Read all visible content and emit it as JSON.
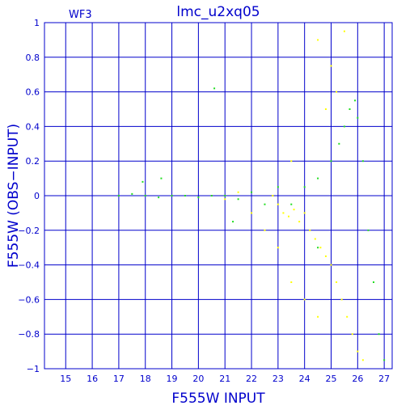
{
  "chart_data": {
    "type": "scatter",
    "title": "lmc_u2xq05",
    "corner_label": "WF3",
    "xlabel": "F555W  INPUT",
    "ylabel": "F555W  (OBS−INPUT)",
    "xlim": [
      14.2,
      27.3
    ],
    "ylim": [
      -1,
      1
    ],
    "x_ticks": [
      15,
      16,
      17,
      18,
      19,
      20,
      21,
      22,
      23,
      24,
      25,
      26,
      27
    ],
    "y_ticks": [
      -1,
      -0.8,
      -0.6,
      -0.4,
      -0.2,
      0,
      0.2,
      0.4,
      0.6,
      0.8,
      1
    ],
    "x_tick_labels": [
      "15",
      "16",
      "17",
      "18",
      "19",
      "20",
      "21",
      "22",
      "23",
      "24",
      "25",
      "26",
      "27"
    ],
    "y_tick_labels": [
      "−1",
      "−0.8",
      "−0.6",
      "−0.4",
      "−0.2",
      "0",
      "0.2",
      "0.4",
      "0.6",
      "0.8",
      "1"
    ],
    "grid": true,
    "colors": {
      "axis": "#0000cc",
      "grid": "#0000cc",
      "series_green": "#22dd22",
      "series_yellow": "#ffff00"
    },
    "series": [
      {
        "color": "#ffff00",
        "points": [
          [
            22.8,
            0.0
          ],
          [
            23.0,
            -0.05
          ],
          [
            23.2,
            -0.1
          ],
          [
            23.4,
            -0.12
          ],
          [
            23.6,
            -0.08
          ],
          [
            23.8,
            -0.15
          ],
          [
            24.0,
            -0.1
          ],
          [
            24.2,
            -0.2
          ],
          [
            24.4,
            -0.25
          ],
          [
            24.6,
            -0.3
          ],
          [
            24.8,
            -0.35
          ],
          [
            25.0,
            -0.4
          ],
          [
            25.2,
            -0.5
          ],
          [
            25.4,
            -0.6
          ],
          [
            25.6,
            -0.7
          ],
          [
            25.8,
            -0.8
          ],
          [
            26.0,
            -0.9
          ],
          [
            26.2,
            -0.95
          ],
          [
            24.5,
            0.9
          ],
          [
            25.0,
            0.75
          ],
          [
            25.5,
            0.95
          ],
          [
            25.2,
            0.6
          ],
          [
            24.8,
            0.5
          ],
          [
            23.5,
            0.2
          ],
          [
            23.0,
            -0.3
          ],
          [
            23.5,
            -0.5
          ],
          [
            24.0,
            -0.6
          ],
          [
            24.5,
            -0.7
          ],
          [
            22.5,
            -0.2
          ],
          [
            22.0,
            -0.1
          ],
          [
            21.5,
            0.02
          ],
          [
            21.0,
            -0.02
          ]
        ]
      },
      {
        "color": "#22dd22",
        "points": [
          [
            17.0,
            0.0
          ],
          [
            17.5,
            0.01
          ],
          [
            18.0,
            0.0
          ],
          [
            18.5,
            -0.01
          ],
          [
            19.0,
            0.0
          ],
          [
            19.5,
            0.0
          ],
          [
            20.0,
            -0.01
          ],
          [
            20.5,
            0.0
          ],
          [
            21.0,
            0.0
          ],
          [
            21.5,
            -0.02
          ],
          [
            22.0,
            0.02
          ],
          [
            22.5,
            -0.05
          ],
          [
            23.0,
            0.05
          ],
          [
            23.5,
            -0.05
          ],
          [
            24.0,
            0.05
          ],
          [
            24.5,
            0.1
          ],
          [
            25.0,
            0.2
          ],
          [
            25.3,
            0.3
          ],
          [
            25.5,
            0.4
          ],
          [
            25.7,
            0.5
          ],
          [
            25.9,
            0.55
          ],
          [
            26.0,
            0.45
          ],
          [
            26.2,
            0.2
          ],
          [
            26.4,
            -0.2
          ],
          [
            26.6,
            -0.5
          ],
          [
            26.8,
            -0.8
          ],
          [
            27.0,
            -0.95
          ],
          [
            20.6,
            0.62
          ],
          [
            18.6,
            0.1
          ],
          [
            17.9,
            0.08
          ],
          [
            21.3,
            -0.15
          ],
          [
            24.5,
            -0.3
          ]
        ]
      }
    ]
  }
}
